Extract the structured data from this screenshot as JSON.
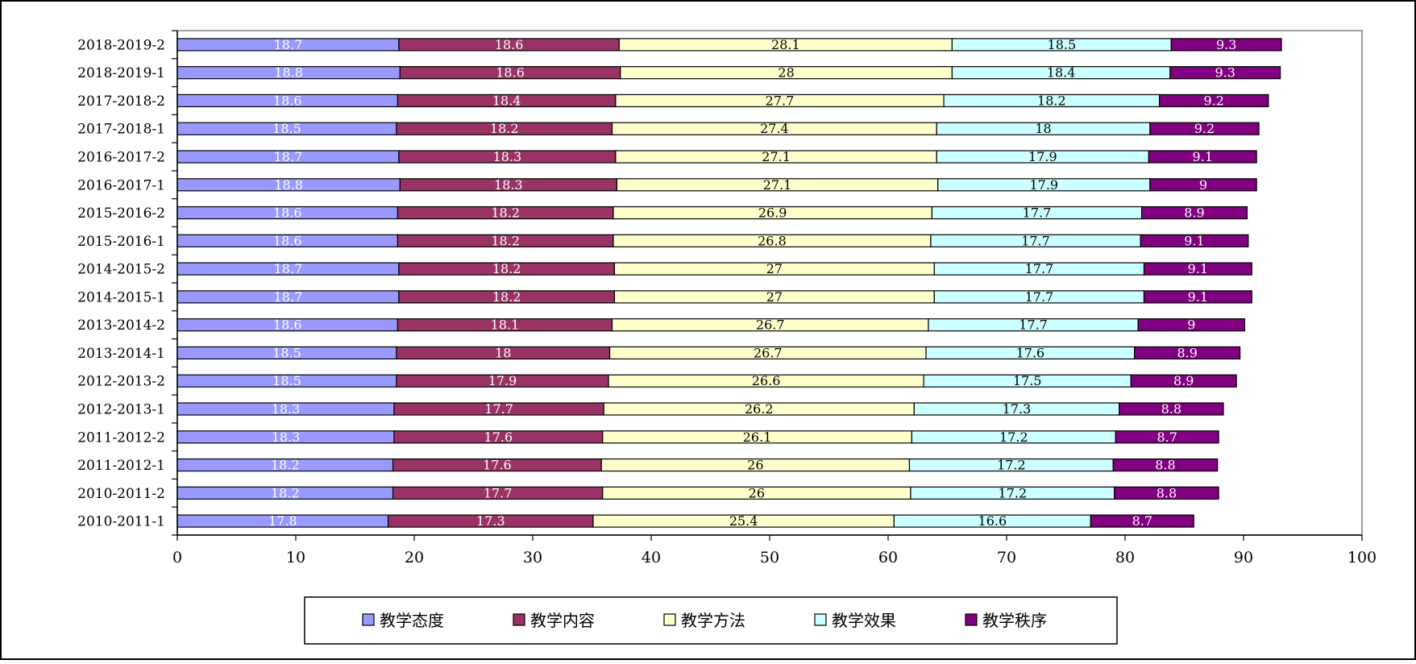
{
  "chart_data": {
    "type": "bar",
    "orientation": "horizontal",
    "stacked": true,
    "categories": [
      "2018-2019-2",
      "2018-2019-1",
      "2017-2018-2",
      "2017-2018-1",
      "2016-2017-2",
      "2016-2017-1",
      "2015-2016-2",
      "2015-2016-1",
      "2014-2015-2",
      "2014-2015-1",
      "2013-2014-2",
      "2013-2014-1",
      "2012-2013-2",
      "2012-2013-1",
      "2011-2012-2",
      "2011-2012-1",
      "2010-2011-2",
      "2010-2011-1"
    ],
    "series": [
      {
        "name": "教学态度",
        "color": "#9999ff",
        "label_color": "#ffffff",
        "values": [
          18.7,
          18.8,
          18.6,
          18.5,
          18.7,
          18.8,
          18.6,
          18.6,
          18.7,
          18.7,
          18.6,
          18.5,
          18.5,
          18.3,
          18.3,
          18.2,
          18.2,
          17.8
        ]
      },
      {
        "name": "教学内容",
        "color": "#993366",
        "label_color": "#ffffff",
        "values": [
          18.6,
          18.6,
          18.4,
          18.2,
          18.3,
          18.3,
          18.2,
          18.2,
          18.2,
          18.2,
          18.1,
          18,
          17.9,
          17.7,
          17.6,
          17.6,
          17.7,
          17.3
        ]
      },
      {
        "name": "教学方法",
        "color": "#ffffcc",
        "label_color": "#000000",
        "values": [
          28.1,
          28,
          27.7,
          27.4,
          27.1,
          27.1,
          26.9,
          26.8,
          27,
          27,
          26.7,
          26.7,
          26.6,
          26.2,
          26.1,
          26,
          26,
          25.4
        ]
      },
      {
        "name": "教学效果",
        "color": "#ccffff",
        "label_color": "#000000",
        "values": [
          18.5,
          18.4,
          18.2,
          18,
          17.9,
          17.9,
          17.7,
          17.7,
          17.7,
          17.7,
          17.7,
          17.6,
          17.5,
          17.3,
          17.2,
          17.2,
          17.2,
          16.6
        ]
      },
      {
        "name": "教学秩序",
        "color": "#800080",
        "label_color": "#ffffff",
        "values": [
          9.3,
          9.3,
          9.2,
          9.2,
          9.1,
          9,
          8.9,
          9.1,
          9.1,
          9.1,
          9,
          8.9,
          8.9,
          8.8,
          8.7,
          8.8,
          8.8,
          8.7
        ]
      }
    ],
    "x_ticks": [
      0,
      10,
      20,
      30,
      40,
      50,
      60,
      70,
      80,
      90,
      100
    ],
    "xlim": [
      0,
      100
    ],
    "title": "",
    "xlabel": "",
    "ylabel": "",
    "grid": false,
    "legend_position": "bottom"
  }
}
